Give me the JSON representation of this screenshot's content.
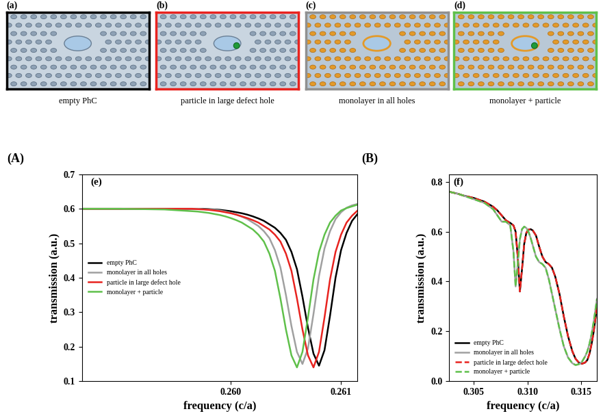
{
  "panels": [
    {
      "label": "(a)",
      "caption": "empty PhC",
      "color": "#000000"
    },
    {
      "label": "(b)",
      "caption": "particle in large defect hole",
      "color": "#e8231f"
    },
    {
      "label": "(c)",
      "caption": "monolayer in all holes",
      "color": "#909090"
    },
    {
      "label": "(d)",
      "caption": "monolayer + particle",
      "color": "#5fc04a"
    }
  ],
  "chart_data": [
    {
      "type": "line",
      "title": "(A)",
      "annotations": [
        "(e)"
      ],
      "x_label": "frequency (c/a)",
      "y_label": "transmission (a.u.)",
      "x": [
        0.25865,
        0.259,
        0.2594,
        0.25945,
        0.2595,
        0.25955,
        0.2596,
        0.25965,
        0.2597,
        0.25975,
        0.2598,
        0.25985,
        0.2599,
        0.25995,
        0.26,
        0.26005,
        0.2601,
        0.26015,
        0.2602,
        0.26025,
        0.2603,
        0.26035,
        0.2604,
        0.26045,
        0.2605,
        0.26055,
        0.2606,
        0.26065,
        0.2607,
        0.26075,
        0.2608,
        0.26085,
        0.2609,
        0.26095,
        0.261,
        0.26105,
        0.2611,
        0.26115
      ],
      "series": [
        {
          "name": "empty PhC",
          "color": "#000000",
          "line_style": "solid",
          "values": [
            0.6,
            0.6,
            0.6,
            0.6,
            0.6,
            0.6,
            0.6,
            0.6,
            0.6,
            0.6,
            0.599,
            0.598,
            0.597,
            0.595,
            0.593,
            0.59,
            0.587,
            0.583,
            0.578,
            0.572,
            0.565,
            0.555,
            0.545,
            0.53,
            0.51,
            0.475,
            0.425,
            0.345,
            0.255,
            0.18,
            0.145,
            0.19,
            0.29,
            0.4,
            0.48,
            0.53,
            0.565,
            0.585
          ]
        },
        {
          "name": "monolayer in all holes",
          "color": "#a0a0a0",
          "line_style": "solid",
          "values": [
            0.6,
            0.6,
            0.6,
            0.6,
            0.6,
            0.6,
            0.6,
            0.6,
            0.6,
            0.599,
            0.598,
            0.597,
            0.595,
            0.592,
            0.588,
            0.583,
            0.577,
            0.57,
            0.56,
            0.55,
            0.535,
            0.515,
            0.48,
            0.43,
            0.35,
            0.26,
            0.185,
            0.15,
            0.195,
            0.295,
            0.405,
            0.485,
            0.535,
            0.57,
            0.59,
            0.603,
            0.61,
            0.614
          ]
        },
        {
          "name": "particle in large defect hole",
          "color": "#e8231f",
          "line_style": "solid",
          "values": [
            0.6,
            0.6,
            0.6,
            0.6,
            0.6,
            0.6,
            0.6,
            0.6,
            0.599,
            0.598,
            0.597,
            0.595,
            0.593,
            0.59,
            0.587,
            0.583,
            0.578,
            0.573,
            0.567,
            0.56,
            0.55,
            0.54,
            0.525,
            0.505,
            0.47,
            0.42,
            0.34,
            0.25,
            0.175,
            0.14,
            0.185,
            0.285,
            0.395,
            0.475,
            0.525,
            0.56,
            0.58,
            0.595
          ]
        },
        {
          "name": "monolayer + particle",
          "color": "#5fc04a",
          "line_style": "solid",
          "values": [
            0.6,
            0.6,
            0.598,
            0.597,
            0.596,
            0.595,
            0.594,
            0.593,
            0.592,
            0.59,
            0.588,
            0.585,
            0.582,
            0.578,
            0.573,
            0.567,
            0.56,
            0.55,
            0.54,
            0.525,
            0.505,
            0.47,
            0.42,
            0.34,
            0.25,
            0.175,
            0.14,
            0.185,
            0.285,
            0.395,
            0.475,
            0.525,
            0.56,
            0.58,
            0.595,
            0.602,
            0.607,
            0.612
          ]
        }
      ],
      "xlim": [
        0.25865,
        0.26115
      ],
      "xticks": [
        {
          "value": 0.26,
          "label": "0.260"
        },
        {
          "value": 0.261,
          "label": "0.261"
        }
      ],
      "ylim": [
        0.1,
        0.7
      ],
      "yticks": [
        0.1,
        0.2,
        0.3,
        0.4,
        0.5,
        0.6,
        0.7
      ],
      "legend": "center left",
      "grid": false
    },
    {
      "type": "line",
      "title": "(B)",
      "annotations": [
        "(f)"
      ],
      "x_label": "frequency (c/a)",
      "y_label": "transmission (a.u.)",
      "x": [
        0.3027,
        0.3035,
        0.304,
        0.305,
        0.306,
        0.3068,
        0.3072,
        0.3076,
        0.308,
        0.3084,
        0.3087,
        0.3089,
        0.3091,
        0.3093,
        0.3095,
        0.3097,
        0.3099,
        0.3101,
        0.3103,
        0.3105,
        0.3108,
        0.3111,
        0.3114,
        0.3117,
        0.312,
        0.3123,
        0.3126,
        0.313,
        0.3134,
        0.3138,
        0.3142,
        0.3145,
        0.3148,
        0.3151,
        0.3154,
        0.3156,
        0.3158,
        0.316,
        0.3162,
        0.3165
      ],
      "series": [
        {
          "name": "empty PhC",
          "color": "#000000",
          "line_style": "solid",
          "values": [
            0.76,
            0.752,
            0.745,
            0.735,
            0.72,
            0.7,
            0.685,
            0.665,
            0.645,
            0.635,
            0.625,
            0.6,
            0.5,
            0.36,
            0.45,
            0.55,
            0.595,
            0.608,
            0.61,
            0.605,
            0.585,
            0.54,
            0.5,
            0.478,
            0.47,
            0.455,
            0.42,
            0.35,
            0.26,
            0.18,
            0.12,
            0.09,
            0.075,
            0.07,
            0.075,
            0.085,
            0.11,
            0.15,
            0.2,
            0.3
          ]
        },
        {
          "name": "monolayer in all holes",
          "color": "#a0a0a0",
          "line_style": "solid",
          "values": [
            0.76,
            0.752,
            0.745,
            0.73,
            0.715,
            0.69,
            0.665,
            0.64,
            0.64,
            0.625,
            0.52,
            0.38,
            0.47,
            0.57,
            0.61,
            0.62,
            0.615,
            0.6,
            0.575,
            0.545,
            0.5,
            0.478,
            0.47,
            0.455,
            0.41,
            0.35,
            0.29,
            0.21,
            0.14,
            0.095,
            0.072,
            0.065,
            0.068,
            0.078,
            0.1,
            0.12,
            0.15,
            0.19,
            0.24,
            0.33
          ]
        },
        {
          "name": "particle in large defect hole",
          "color": "#e8231f",
          "line_style": "dashed",
          "values": [
            0.76,
            0.752,
            0.745,
            0.735,
            0.72,
            0.7,
            0.685,
            0.665,
            0.645,
            0.635,
            0.625,
            0.6,
            0.5,
            0.36,
            0.45,
            0.55,
            0.595,
            0.608,
            0.61,
            0.605,
            0.585,
            0.54,
            0.5,
            0.478,
            0.47,
            0.455,
            0.42,
            0.35,
            0.26,
            0.18,
            0.12,
            0.09,
            0.075,
            0.07,
            0.075,
            0.085,
            0.11,
            0.15,
            0.2,
            0.3
          ]
        },
        {
          "name": "monolayer + particle",
          "color": "#5fc04a",
          "line_style": "dashed",
          "values": [
            0.76,
            0.752,
            0.745,
            0.73,
            0.715,
            0.69,
            0.665,
            0.64,
            0.64,
            0.625,
            0.52,
            0.38,
            0.47,
            0.57,
            0.61,
            0.62,
            0.615,
            0.6,
            0.575,
            0.545,
            0.5,
            0.478,
            0.47,
            0.455,
            0.41,
            0.35,
            0.29,
            0.21,
            0.14,
            0.095,
            0.072,
            0.065,
            0.068,
            0.078,
            0.1,
            0.12,
            0.15,
            0.19,
            0.24,
            0.33
          ]
        }
      ],
      "xlim": [
        0.3027,
        0.3165
      ],
      "xticks": [
        {
          "value": 0.305,
          "label": "0.305"
        },
        {
          "value": 0.31,
          "label": "0.310"
        },
        {
          "value": 0.315,
          "label": "0.315"
        }
      ],
      "ylim": [
        0.0,
        0.83
      ],
      "yticks": [
        0.0,
        0.2,
        0.4,
        0.6,
        0.8
      ],
      "legend": "lower left",
      "grid": false
    }
  ]
}
